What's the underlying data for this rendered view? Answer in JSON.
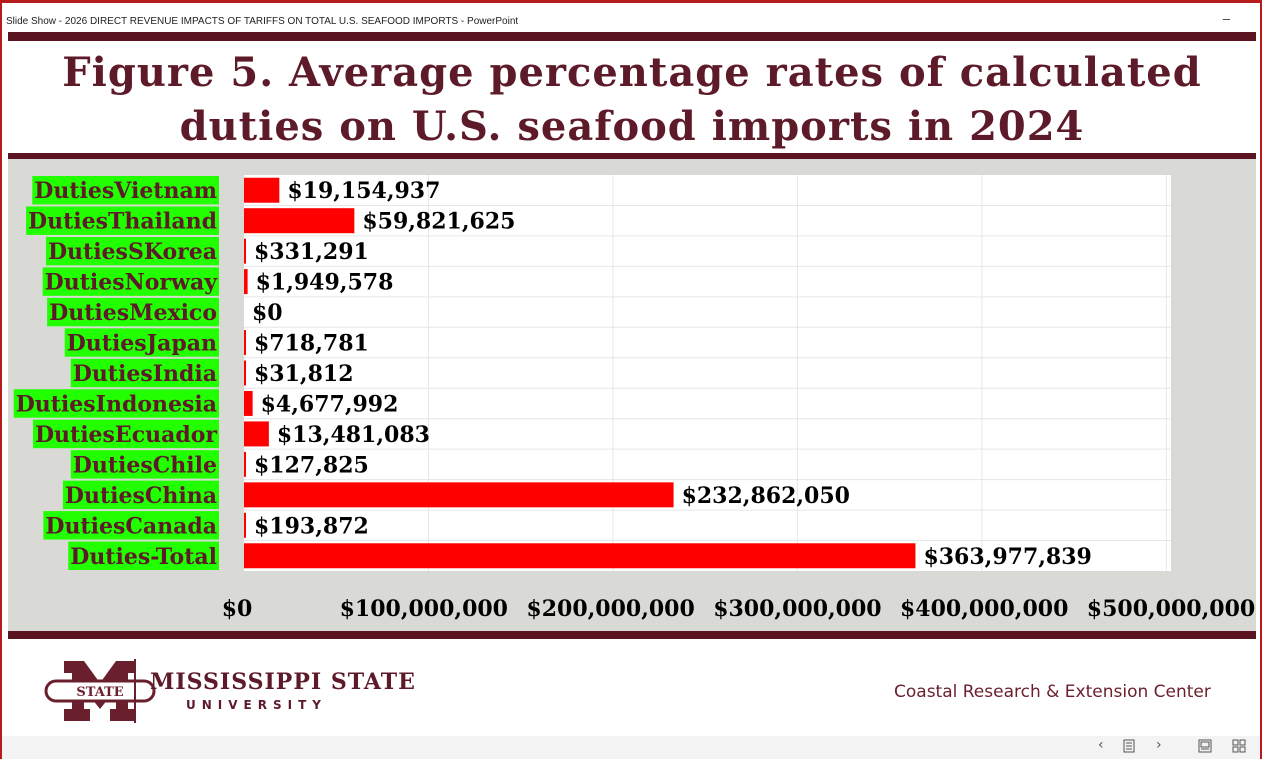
{
  "window": {
    "title": "Slide Show  -  2026 DIRECT REVENUE IMPACTS OF TARIFFS ON TOTAL U.S. SEAFOOD IMPORTS - PowerPoint",
    "minimize_label": "–"
  },
  "slide": {
    "title_line1": "Figure 5. Average percentage rates of calculated",
    "title_line2": "duties on U.S. seafood imports in 2024"
  },
  "chart_data": {
    "type": "bar",
    "orientation": "horizontal",
    "categories": [
      "DutiesVietnam",
      "DutiesThailand",
      "DutiesSKorea",
      "DutiesNorway",
      "DutiesMexico",
      "DutiesJapan",
      "DutiesIndia",
      "DutiesIndonesia",
      "DutiesEcuador",
      "DutiesChile",
      "DutiesChina",
      "DutiesCanada",
      "Duties-Total"
    ],
    "values": [
      19154937,
      59821625,
      331291,
      1949578,
      0,
      718781,
      31812,
      4677992,
      13481083,
      127825,
      232862050,
      193872,
      363977839
    ],
    "data_labels": [
      "$19,154,937",
      "$59,821,625",
      "$331,291",
      "$1,949,578",
      "$0",
      "$718,781",
      "$31,812",
      "$4,677,992",
      "$13,481,083",
      "$127,825",
      "$232,862,050",
      "$193,872",
      "$363,977,839"
    ],
    "x_ticks": [
      0,
      100000000,
      200000000,
      300000000,
      400000000,
      500000000
    ],
    "x_tick_labels": [
      "$0",
      "$100,000,000",
      "$200,000,000",
      "$300,000,000",
      "$400,000,000",
      "$500,000,000"
    ],
    "xlim": [
      0,
      500000000
    ],
    "xlabel": "",
    "ylabel": "",
    "grid": true,
    "colors": {
      "bar": "#ff0000",
      "category_label_bg": "#22ff00",
      "plot_bg": "#ffffff",
      "chart_bg": "#d9dad5"
    }
  },
  "footer": {
    "university_line1": "MISSISSIPPI STATE",
    "university_line2": "UNIVERSITY",
    "seal_text": "STATE",
    "center": "Coastal Research & Extension Center"
  },
  "navigation": {
    "prev_icon": "chevron-left-icon",
    "slides_icon": "slide-list-icon",
    "next_icon": "chevron-right-icon",
    "normal_view_icon": "normal-view-icon",
    "sorter_icon": "slide-sorter-icon"
  },
  "colors": {
    "accent_maroon": "#5d1a28",
    "window_border": "#b71c1c"
  }
}
